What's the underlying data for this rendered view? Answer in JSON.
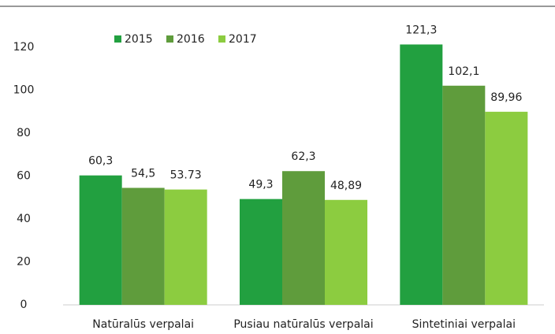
{
  "chart_data": {
    "type": "bar",
    "categories": [
      "Natūralūs verpalai",
      "Pusiau natūralūs verpalai",
      "Sintetiniai verpalai"
    ],
    "series": [
      {
        "name": "2015",
        "color": "#22a040",
        "values": [
          60.3,
          49.3,
          121.3
        ],
        "value_labels": [
          "60,3",
          "49,3",
          "121,3"
        ]
      },
      {
        "name": "2016",
        "color": "#5f9c3c",
        "values": [
          54.5,
          62.3,
          102.1
        ],
        "value_labels": [
          "54,5",
          "62,3",
          "102,1"
        ]
      },
      {
        "name": "2017",
        "color": "#8ccc40",
        "values": [
          53.73,
          48.89,
          89.96
        ],
        "value_labels": [
          "53.73",
          "48,89",
          "89,96"
        ]
      }
    ],
    "ylim": [
      0,
      120
    ],
    "yticks": [
      0,
      20,
      40,
      60,
      80,
      100,
      120
    ],
    "grid": false,
    "legend": "top"
  }
}
